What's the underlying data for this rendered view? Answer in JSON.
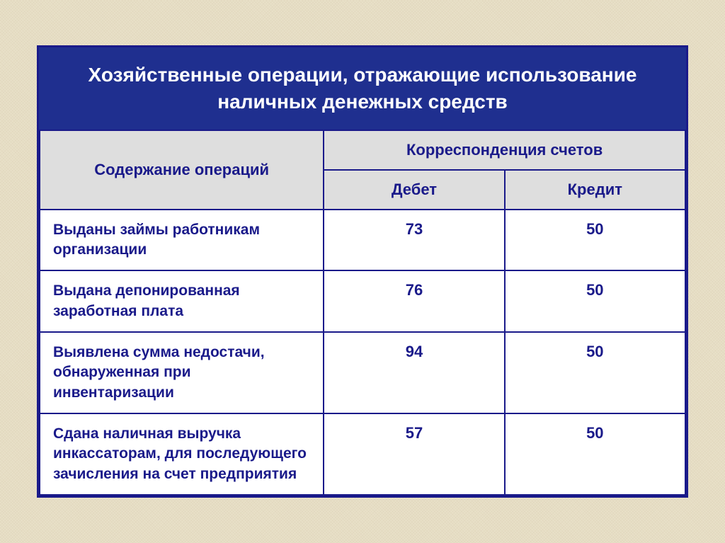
{
  "table": {
    "type": "table",
    "title": "Хозяйственные операции, отражающие использование наличных  денежных средств",
    "header": {
      "operations": "Содержание операций",
      "correspondence": "Корреспонденция счетов",
      "debit": "Дебет",
      "credit": "Кредит"
    },
    "rows": [
      {
        "label": "Выданы займы работникам организации",
        "debit": "73",
        "credit": "50"
      },
      {
        "label": "Выдана депонированная заработная плата",
        "debit": "76",
        "credit": "50"
      },
      {
        "label": "Выявлена сумма недостачи, обнаруженная при инвентаризации",
        "debit": "94",
        "credit": "50"
      },
      {
        "label": "Сдана наличная выручка инкассаторам, для последующего зачисления на счет предприятия",
        "debit": "57",
        "credit": "50"
      }
    ],
    "styling": {
      "title_bg": "#1f2f8f",
      "title_color": "#ffffff",
      "title_fontsize": 28,
      "header_bg": "#dedede",
      "header_fontsize": 22,
      "cell_bg": "#ffffff",
      "cell_fontsize": 21,
      "text_color": "#1a1a8a",
      "border_color": "#1a1a8a",
      "border_width": 2,
      "outer_border_width": 3,
      "page_bg": "#e8e0c8",
      "col_widths": [
        "44%",
        "28%",
        "28%"
      ]
    }
  }
}
